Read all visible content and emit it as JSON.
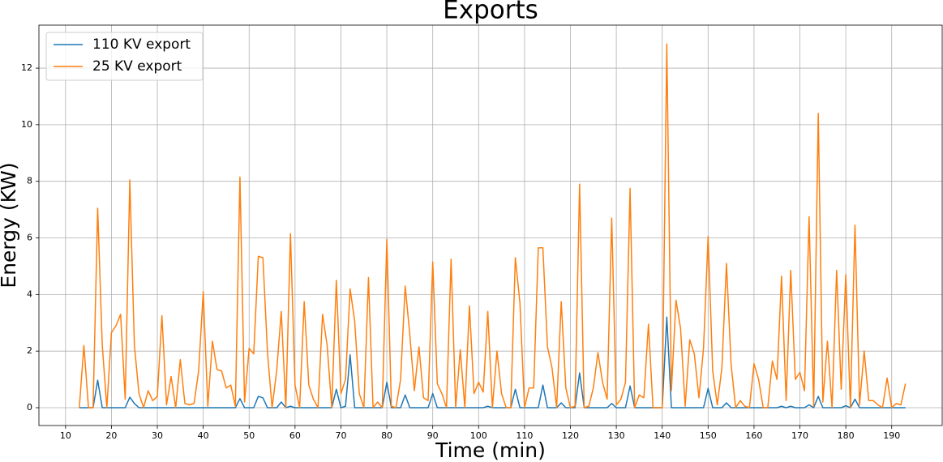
{
  "chart_data": {
    "type": "line",
    "title": "Exports",
    "xlabel": "Time (min)",
    "ylabel": "Energy (KW)",
    "x": [
      13,
      14,
      15,
      16,
      17,
      18,
      19,
      20,
      21,
      22,
      23,
      24,
      25,
      26,
      27,
      28,
      29,
      30,
      31,
      32,
      33,
      34,
      35,
      36,
      37,
      38,
      39,
      40,
      41,
      42,
      43,
      44,
      45,
      46,
      47,
      48,
      49,
      50,
      51,
      52,
      53,
      54,
      55,
      56,
      57,
      58,
      59,
      60,
      61,
      62,
      63,
      64,
      65,
      66,
      67,
      68,
      69,
      70,
      71,
      72,
      73,
      74,
      75,
      76,
      77,
      78,
      79,
      80,
      81,
      82,
      83,
      84,
      85,
      86,
      87,
      88,
      89,
      90,
      91,
      92,
      93,
      94,
      95,
      96,
      97,
      98,
      99,
      100,
      101,
      102,
      103,
      104,
      105,
      106,
      107,
      108,
      109,
      110,
      111,
      112,
      113,
      114,
      115,
      116,
      117,
      118,
      119,
      120,
      121,
      122,
      123,
      124,
      125,
      126,
      127,
      128,
      129,
      130,
      131,
      132,
      133,
      134,
      135,
      136,
      137,
      138,
      139,
      140,
      141,
      142,
      143,
      144,
      145,
      146,
      147,
      148,
      149,
      150,
      151,
      152,
      153,
      154,
      155,
      156,
      157,
      158,
      159,
      160,
      161,
      162,
      163,
      164,
      165,
      166,
      167,
      168,
      169,
      170,
      171,
      172,
      173,
      174,
      175,
      176,
      177,
      178,
      179,
      180,
      181,
      182,
      183,
      184,
      185,
      186,
      187,
      188,
      189,
      190,
      191,
      192,
      193
    ],
    "series": [
      {
        "name": "110 KV export",
        "color": "#1f77b4",
        "values": [
          0,
          0,
          0,
          0,
          0.97,
          0,
          0,
          0,
          0,
          0,
          0,
          0.37,
          0.15,
          0,
          0,
          0,
          0,
          0,
          0,
          0,
          0,
          0,
          0,
          0,
          0,
          0,
          0,
          0,
          0,
          0,
          0,
          0,
          0,
          0,
          0,
          0.32,
          0,
          0,
          0,
          0.4,
          0.35,
          0,
          0,
          0,
          0.2,
          0,
          0.05,
          0,
          0,
          0,
          0,
          0,
          0,
          0,
          0,
          0,
          0.65,
          0,
          0.05,
          1.87,
          0,
          0,
          0,
          0,
          0,
          0,
          0,
          0.9,
          0,
          0,
          0,
          0.45,
          0,
          0,
          0,
          0,
          0,
          0.5,
          0,
          0,
          0,
          0,
          0,
          0,
          0,
          0,
          0,
          0,
          0,
          0.05,
          0,
          0,
          0,
          0,
          0,
          0.65,
          0,
          0,
          0,
          0,
          0,
          0.8,
          0,
          0,
          0,
          0.17,
          0,
          0,
          0,
          1.23,
          0,
          0,
          0,
          0,
          0,
          0,
          0.15,
          0,
          0,
          0,
          0.77,
          0,
          0,
          0,
          0,
          0,
          0,
          0,
          3.2,
          0,
          0,
          0,
          0,
          0,
          0,
          0,
          0,
          0.68,
          0,
          0,
          0,
          0.17,
          0,
          0,
          0,
          0,
          0,
          0,
          0,
          0,
          0,
          0,
          0,
          0.05,
          0,
          0.05,
          0,
          0,
          0,
          0.1,
          0,
          0.4,
          0,
          0,
          0,
          0,
          0,
          0.07,
          0,
          0.3,
          0,
          0,
          0,
          0,
          0,
          0,
          0,
          0,
          0,
          0,
          0
        ]
      },
      {
        "name": "25 KV export",
        "color": "#ff7f0e",
        "values": [
          0,
          2.2,
          0,
          0,
          7.05,
          2.2,
          0,
          2.65,
          2.9,
          3.3,
          0.3,
          8.05,
          2.2,
          0.5,
          0,
          0.6,
          0.25,
          0.4,
          3.25,
          0.1,
          1.1,
          0,
          1.7,
          0.15,
          0.1,
          0.15,
          1.3,
          4.1,
          0.05,
          2.35,
          1.35,
          1.3,
          0.7,
          0.8,
          0.05,
          8.15,
          0.2,
          2.1,
          1.9,
          5.35,
          5.3,
          1.95,
          0,
          1.3,
          3.4,
          0,
          6.15,
          0.8,
          0,
          3.75,
          0.8,
          0.3,
          0,
          3.3,
          2.2,
          0,
          4.5,
          0.5,
          1,
          4.2,
          3.05,
          0.5,
          0,
          4.6,
          0,
          0.2,
          0,
          5.95,
          0.05,
          0,
          1,
          4.3,
          2.6,
          0.6,
          2.15,
          0.35,
          0.25,
          5.15,
          0.85,
          0.5,
          0,
          5.25,
          0,
          2.05,
          0,
          3.6,
          0.5,
          0.9,
          0.55,
          3.4,
          0,
          2,
          0.5,
          0,
          0,
          5.3,
          3.7,
          0,
          0.7,
          0.7,
          5.65,
          5.65,
          2.15,
          1.4,
          0,
          3.75,
          0.7,
          0,
          0.05,
          7.9,
          0,
          0.05,
          0.7,
          1.95,
          0.9,
          0.3,
          6.7,
          0.1,
          0.3,
          0.9,
          7.75,
          0,
          0.45,
          0.35,
          2.95,
          0,
          0,
          0,
          12.85,
          0.6,
          3.8,
          2.8,
          0.05,
          2.4,
          1.9,
          0.35,
          2.1,
          6.05,
          1.3,
          0.1,
          1.4,
          5.1,
          1.55,
          0,
          0.25,
          0.05,
          0,
          1.55,
          1,
          0,
          0,
          1.65,
          1,
          4.65,
          0.25,
          4.85,
          1,
          1.25,
          0.6,
          6.75,
          0.05,
          10.4,
          0.2,
          2.35,
          0,
          4.85,
          0.65,
          4.7,
          0,
          6.45,
          0.1,
          2,
          0.25,
          0.25,
          0.1,
          0,
          1.05,
          0,
          0.15,
          0.1,
          0.85
        ]
      }
    ],
    "xlim": [
      4.2,
      201
    ],
    "ylim": [
      -0.63,
      13.52
    ],
    "xticks": [
      10,
      20,
      30,
      40,
      50,
      60,
      70,
      80,
      90,
      100,
      110,
      120,
      130,
      140,
      150,
      160,
      170,
      180,
      190
    ],
    "yticks": [
      0,
      2,
      4,
      6,
      8,
      10,
      12
    ],
    "grid": true,
    "legend": "upper left"
  }
}
